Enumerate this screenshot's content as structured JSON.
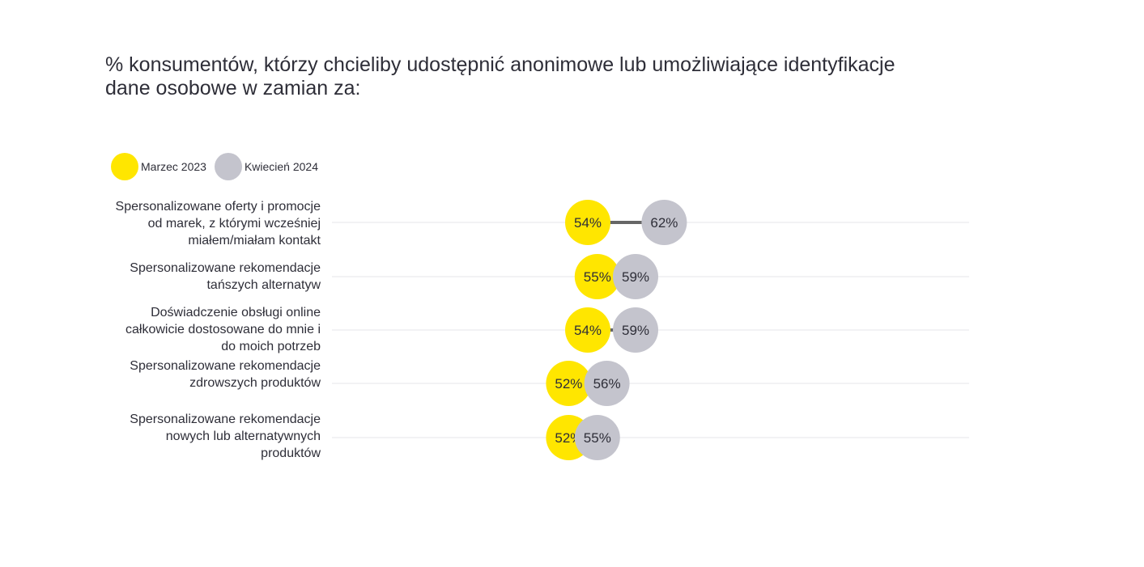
{
  "chart_data": {
    "type": "dumbbell",
    "title": "% konsumentów, którzy chcieliby udostępnić anonimowe lub umożliwiające identyfikacje dane osobowe w zamian za:",
    "series": [
      {
        "name": "Marzec 2023",
        "color": "#ffe600",
        "values": [
          54,
          55,
          54,
          52,
          52
        ]
      },
      {
        "name": "Kwiecień 2024",
        "color": "#c4c4cd",
        "values": [
          62,
          59,
          59,
          56,
          55
        ]
      }
    ],
    "categories": [
      "Spersonalizowane oferty i promocje\nod marek, z którymi wcześniej\nmiałem/miałam kontakt",
      "Spersonalizowane rekomendacje\ntańszych alternatyw",
      "Doświadczenie obsługi online\ncałkowicie dostosowane do mnie i\ndo moich potrzeb",
      "Spersonalizowane rekomendacje\nzdrowszych produktów",
      "Spersonalizowane rekomendacje\nnowych lub alternatywnych\nproduktów"
    ],
    "value_suffix": "%",
    "legend_position": "top-left",
    "connector_color": "#666666",
    "grid": true
  }
}
